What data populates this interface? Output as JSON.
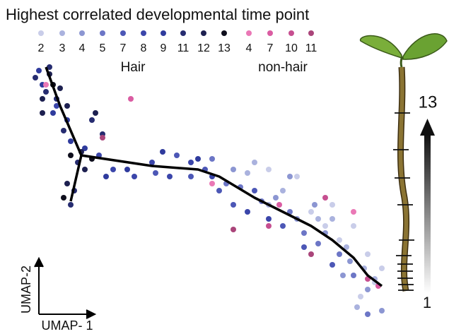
{
  "chart_data": {
    "type": "scatter",
    "title": "Highest correlated developmental time point",
    "xlabel": "UMAP- 1",
    "ylabel": "UMAP-2",
    "xlim": [
      0,
      520
    ],
    "ylim": [
      0,
      380
    ],
    "groups": [
      {
        "name": "Hair",
        "series": [
          {
            "name": "2",
            "color": "#c9cde9",
            "x": [
              380,
              430,
              460,
              480,
              500,
              440,
              400,
              470,
              490,
              340,
              420
            ],
            "y": [
              210,
              170,
              140,
              100,
              80,
              120,
              160,
              40,
              60,
              220,
              140
            ]
          },
          {
            "name": "3",
            "color": "#aab2de",
            "x": [
              310,
              360,
              410,
              450,
              475,
              490,
              465,
              430,
              340,
              320
            ],
            "y": [
              215,
              190,
              150,
              110,
              80,
              65,
              25,
              150,
              170,
              230
            ]
          },
          {
            "name": "4",
            "color": "#8c96d2",
            "x": [
              290,
              350,
              380,
              420,
              455,
              480,
              500,
              370,
              405,
              445
            ],
            "y": [
              220,
              180,
              150,
              130,
              90,
              50,
              20,
              210,
              170,
              70
            ]
          },
          {
            "name": "5",
            "color": "#6c76c6",
            "x": [
              260,
              300,
              330,
              370,
              410,
              440,
              460,
              280,
              390,
              480
            ],
            "y": [
              235,
              195,
              175,
              160,
              115,
              100,
              70,
              200,
              130,
              15
            ]
          },
          {
            "name": "7",
            "color": "#4c57b6",
            "x": [
              210,
              250,
              270,
              320,
              360,
              390,
              430,
              230,
              180,
              290
            ],
            "y": [
              240,
              220,
              190,
              190,
              140,
              110,
              85,
              210,
              215,
              170
            ]
          },
          {
            "name": "8",
            "color": "#3b46aa",
            "x": [
              175,
              200,
              230,
              260,
              310,
              340,
              120,
              150,
              100,
              40
            ],
            "y": [
              230,
              210,
              230,
              210,
              160,
              150,
              220,
              210,
              240,
              310
            ]
          },
          {
            "name": "9",
            "color": "#2f3b9d",
            "x": [
              20,
              35,
              60,
              80,
              110,
              140,
              190,
              240,
              55,
              15
            ],
            "y": [
              340,
              300,
              260,
              250,
              210,
              220,
              245,
              235,
              290,
              360
            ]
          },
          {
            "name": "11",
            "color": "#262c70",
            "x": [
              10,
              25,
              40,
              50,
              70,
              65,
              60,
              90,
              105,
              30
            ],
            "y": [
              350,
              330,
              320,
              275,
              230,
              190,
              170,
              290,
              270,
              365
            ]
          },
          {
            "name": "12",
            "color": "#1d2050",
            "x": [
              20,
              45,
              55,
              75,
              80,
              55,
              95,
              30,
              20
            ],
            "y": [
              320,
              335,
              310,
              245,
              220,
              200,
              300,
              355,
              300
            ]
          },
          {
            "name": "13",
            "color": "#0e0e1c",
            "x": [
              35,
              60,
              90,
              50
            ],
            "y": [
              340,
              240,
              235,
              180
            ]
          }
        ]
      },
      {
        "name": "non-hair",
        "series": [
          {
            "name": "4",
            "color": "#ea78b6",
            "x": [
              25,
              260,
              460
            ],
            "y": [
              340,
              200,
              160
            ]
          },
          {
            "name": "7",
            "color": "#da5ca2",
            "x": [
              145,
              355,
              495
            ],
            "y": [
              320,
              170,
              55
            ]
          },
          {
            "name": "10",
            "color": "#c64f90",
            "x": [
              340,
              420,
              480
            ],
            "y": [
              140,
              180,
              65
            ]
          },
          {
            "name": "11",
            "color": "#aa457a",
            "x": [
              290,
              400,
              105
            ],
            "y": [
              135,
              100,
              265
            ]
          }
        ]
      }
    ],
    "trajectory": {
      "color": "#000000",
      "x": [
        25,
        45,
        75,
        175,
        240,
        270,
        320,
        370,
        400,
        430,
        460,
        480,
        500,
        null,
        75,
        60
      ],
      "y": [
        365,
        310,
        240,
        225,
        220,
        210,
        180,
        155,
        140,
        120,
        95,
        70,
        55,
        null,
        240,
        175
      ]
    },
    "gauge": {
      "max": 13,
      "min": 1
    }
  }
}
